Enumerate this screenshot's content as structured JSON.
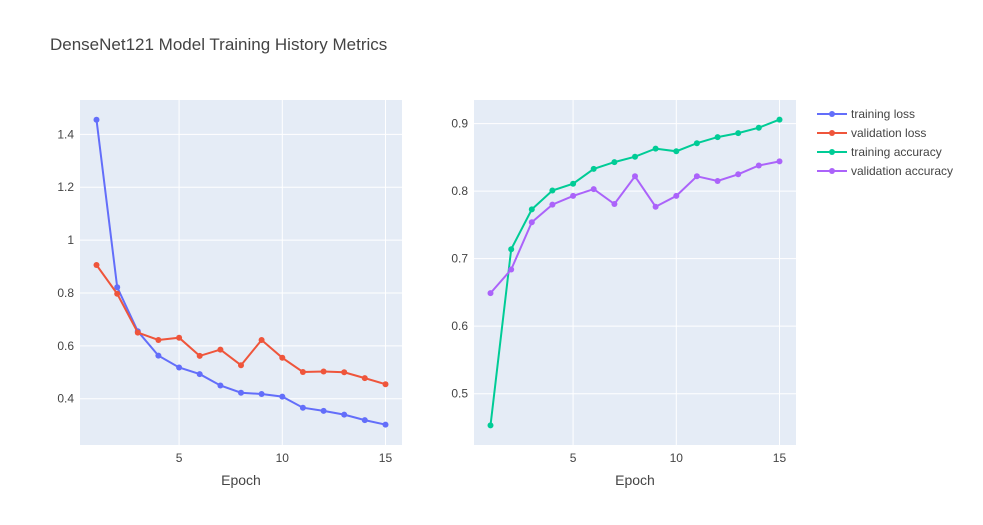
{
  "title": "DenseNet121 Model Training History Metrics",
  "chart_data": [
    {
      "type": "line",
      "xlabel": "Epoch",
      "ylabel": "",
      "xlim": [
        0.2,
        15.8
      ],
      "ylim": [
        0.225,
        1.53
      ],
      "xticks": [
        5,
        10,
        15
      ],
      "yticks": [
        0.4,
        0.6,
        0.8,
        1,
        1.2,
        1.4
      ],
      "x": [
        1,
        2,
        3,
        4,
        5,
        6,
        7,
        8,
        9,
        10,
        11,
        12,
        13,
        14,
        15
      ],
      "series": [
        {
          "name": "training loss",
          "color": "#636efa",
          "values": [
            1.455,
            0.822,
            0.655,
            0.563,
            0.518,
            0.493,
            0.45,
            0.423,
            0.418,
            0.408,
            0.366,
            0.354,
            0.34,
            0.319,
            0.302
          ]
        },
        {
          "name": "validation loss",
          "color": "#ef553b",
          "values": [
            0.906,
            0.797,
            0.65,
            0.622,
            0.631,
            0.562,
            0.586,
            0.527,
            0.622,
            0.555,
            0.501,
            0.503,
            0.5,
            0.478,
            0.455
          ]
        }
      ],
      "grid": true
    },
    {
      "type": "line",
      "xlabel": "Epoch",
      "ylabel": "",
      "xlim": [
        0.2,
        15.8
      ],
      "ylim": [
        0.424,
        0.935
      ],
      "xticks": [
        5,
        10,
        15
      ],
      "yticks": [
        0.5,
        0.6,
        0.7,
        0.8,
        0.9
      ],
      "x": [
        1,
        2,
        3,
        4,
        5,
        6,
        7,
        8,
        9,
        10,
        11,
        12,
        13,
        14,
        15
      ],
      "series": [
        {
          "name": "training accuracy",
          "color": "#00cc96",
          "values": [
            0.453,
            0.714,
            0.773,
            0.801,
            0.811,
            0.833,
            0.843,
            0.851,
            0.863,
            0.859,
            0.871,
            0.88,
            0.886,
            0.894,
            0.906
          ]
        },
        {
          "name": "validation accuracy",
          "color": "#ab63fa",
          "values": [
            0.649,
            0.684,
            0.754,
            0.78,
            0.793,
            0.803,
            0.781,
            0.822,
            0.777,
            0.793,
            0.822,
            0.815,
            0.825,
            0.838,
            0.844
          ]
        }
      ],
      "grid": true
    }
  ],
  "legend": {
    "placement": "top-right",
    "items": [
      "training loss",
      "validation loss",
      "training accuracy",
      "validation accuracy"
    ]
  }
}
